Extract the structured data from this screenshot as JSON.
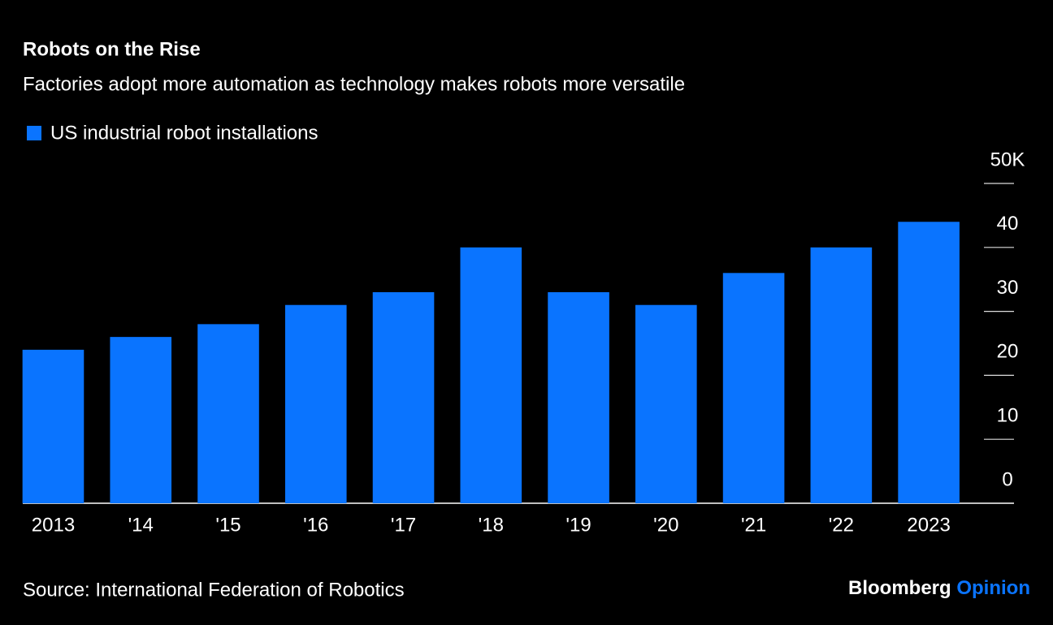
{
  "chart_data": {
    "type": "bar",
    "title": "Robots on the Rise",
    "subtitle": "Factories adopt more automation as technology makes robots more versatile",
    "categories": [
      "2013",
      "'14",
      "'15",
      "'16",
      "'17",
      "'18",
      "'19",
      "'20",
      "'21",
      "'22",
      "2023"
    ],
    "series": [
      {
        "name": "US industrial robot installations",
        "color": "#0a74ff",
        "values": [
          24,
          26,
          28,
          31,
          33,
          40,
          33,
          31,
          36,
          40,
          44
        ]
      }
    ],
    "ylim": [
      0,
      50
    ],
    "yticks": [
      0,
      10,
      20,
      30,
      40,
      {
        "value": 50,
        "label": "50K"
      }
    ],
    "source": "Source: International Federation of Robotics",
    "brand": "Bloomberg",
    "brand_suffix": "Opinion"
  }
}
